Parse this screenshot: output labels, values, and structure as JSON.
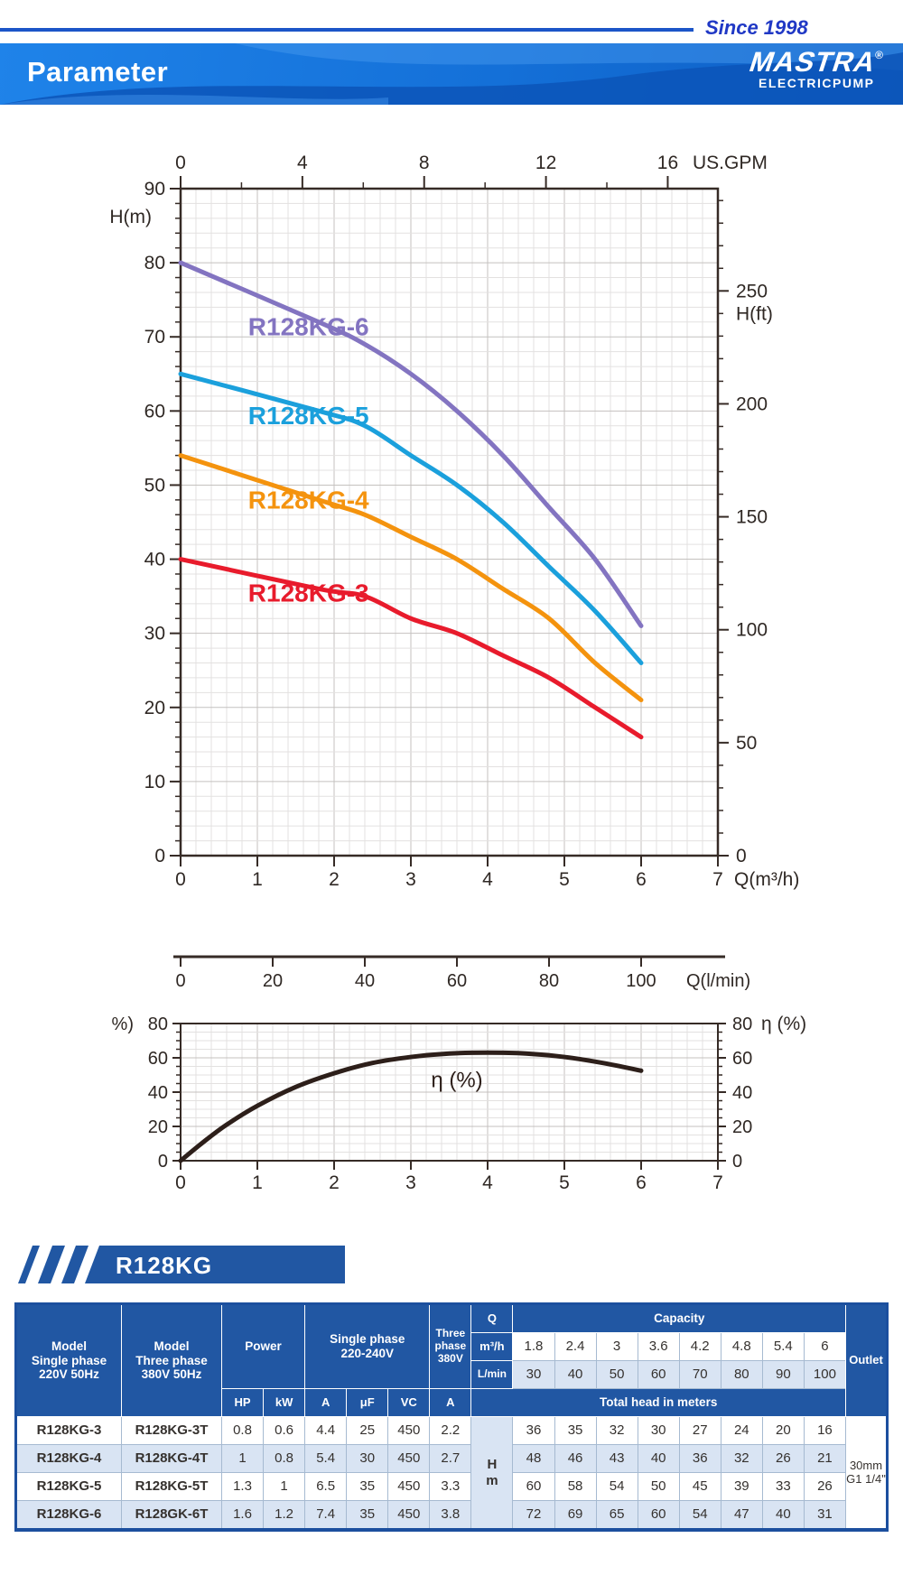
{
  "header": {
    "since_text": "Since 1998",
    "title": "Parameter",
    "brand": {
      "name": "MASTRA",
      "registered": "®",
      "sub": "ELECTRICPUMP"
    }
  },
  "chart_data": [
    {
      "type": "line",
      "name": "head-capacity-curves",
      "xlabel": "Q(m³/h)",
      "x2label": "US.GPM",
      "ylabel": "H(m)",
      "y2label": "H(ft)",
      "xlim": [
        0,
        7
      ],
      "ylim": [
        0,
        90
      ],
      "grid": true,
      "x_major": 1,
      "x_minor": 0.2,
      "y_major": 10,
      "y_minor": 2,
      "x_tick_labels": [
        "0",
        "1",
        "2",
        "3",
        "4",
        "5",
        "6",
        "7"
      ],
      "y_tick_labels": [
        "0",
        "10",
        "20",
        "30",
        "40",
        "50",
        "60",
        "70",
        "80",
        "90"
      ],
      "top_axis": {
        "label": "US.GPM",
        "gpm_per_m3h": 2.521,
        "major": 4,
        "minor": 2,
        "max_major": 16
      },
      "right_axis": {
        "label": "H(ft)",
        "ft_per_m": 3.2808,
        "major": 50,
        "minor": 10,
        "max_major": 250
      },
      "categories_m3h": [
        0,
        1.8,
        2.4,
        3,
        3.6,
        4.2,
        4.8,
        5.4,
        6
      ],
      "series": [
        {
          "name": "R128KG-6",
          "color": "#8374c1",
          "values": [
            80,
            72,
            69,
            65,
            60,
            54,
            47,
            40,
            31
          ],
          "label_xy": [
            0.88,
            70.2
          ]
        },
        {
          "name": "R128KG-5",
          "color": "#1ba0dc",
          "values": [
            65,
            60,
            58,
            54,
            50,
            45,
            39,
            33,
            26
          ],
          "label_xy": [
            0.88,
            58.2
          ]
        },
        {
          "name": "R128KG-4",
          "color": "#f4930e",
          "values": [
            54,
            48,
            46,
            43,
            40,
            36,
            32,
            26,
            21
          ],
          "label_xy": [
            0.88,
            46.8
          ]
        },
        {
          "name": "R128KG-3",
          "color": "#e81b2c",
          "values": [
            40,
            36,
            35,
            32,
            30,
            27,
            24,
            20,
            16
          ],
          "label_xy": [
            0.88,
            34.3
          ]
        }
      ]
    },
    {
      "type": "axis",
      "name": "lmin-scale",
      "label": "Q(l/min)",
      "ticks": [
        "0",
        "20",
        "40",
        "60",
        "80",
        "100"
      ],
      "tick_values": [
        0,
        20,
        40,
        60,
        80,
        100
      ],
      "lmin_per_m3h": 16.6667
    },
    {
      "type": "line",
      "name": "efficiency-curve",
      "label_left_clipped": "%)",
      "label_right": "η (%)",
      "annotation": "η (%)",
      "color": "#2d1f1a",
      "xlim": [
        0,
        7
      ],
      "ylim": [
        0,
        80
      ],
      "x_major": 1,
      "x_minor": 0.2,
      "y_major": 20,
      "y_minor": 5,
      "x_tick_labels": [
        "0",
        "1",
        "2",
        "3",
        "4",
        "5",
        "6",
        "7"
      ],
      "y_tick_labels": [
        "0",
        "20",
        "40",
        "60",
        "80"
      ],
      "x": [
        0,
        0.3,
        0.6,
        1,
        1.5,
        2,
        2.5,
        3,
        3.5,
        4,
        4.5,
        5,
        5.5,
        6
      ],
      "y": [
        0,
        11,
        21,
        32,
        43,
        51,
        57,
        60.5,
        62.5,
        63,
        62.5,
        60.5,
        57,
        52.5
      ],
      "annotation_xy": [
        3.6,
        43
      ]
    }
  ],
  "model_banner": {
    "text": "R128KG"
  },
  "table": {
    "col_model_single": [
      "Model",
      "Single phase",
      "220V 50Hz"
    ],
    "col_model_three": [
      "Model",
      "Three phase",
      "380V 50Hz"
    ],
    "col_power": "Power",
    "col_single_phase": [
      "Single phase",
      "220-240V"
    ],
    "col_three_phase": [
      "Three",
      "phase",
      "380V"
    ],
    "q_label": "Q",
    "capacity_label": "Capacity",
    "m3h_label": "m³/h",
    "lmin_label": "L/min",
    "m3h_values": [
      "1.8",
      "2.4",
      "3",
      "3.6",
      "4.2",
      "4.8",
      "5.4",
      "6"
    ],
    "lmin_values": [
      "30",
      "40",
      "50",
      "60",
      "70",
      "80",
      "90",
      "100"
    ],
    "outlet_label": "Outlet",
    "sub_headers": [
      "HP",
      "kW",
      "A",
      "μF",
      "VC",
      "A"
    ],
    "total_head_label": "Total head in meters",
    "hm_label": [
      "H",
      "m"
    ],
    "outlet_value": [
      "30mm",
      "G1 1/4\""
    ],
    "rows": [
      {
        "model_single": "R128KG-3",
        "model_three": "R128KG-3T",
        "hp": "0.8",
        "kw": "0.6",
        "a": "4.4",
        "uf": "25",
        "vc": "450",
        "a3": "2.2",
        "heads": [
          "36",
          "35",
          "32",
          "30",
          "27",
          "24",
          "20",
          "16"
        ]
      },
      {
        "model_single": "R128KG-4",
        "model_three": "R128KG-4T",
        "hp": "1",
        "kw": "0.8",
        "a": "5.4",
        "uf": "30",
        "vc": "450",
        "a3": "2.7",
        "heads": [
          "48",
          "46",
          "43",
          "40",
          "36",
          "32",
          "26",
          "21"
        ]
      },
      {
        "model_single": "R128KG-5",
        "model_three": "R128KG-5T",
        "hp": "1.3",
        "kw": "1",
        "a": "6.5",
        "uf": "35",
        "vc": "450",
        "a3": "3.3",
        "heads": [
          "60",
          "58",
          "54",
          "50",
          "45",
          "39",
          "33",
          "26"
        ]
      },
      {
        "model_single": "R128KG-6",
        "model_three": "R128GK-6T",
        "hp": "1.6",
        "kw": "1.2",
        "a": "7.4",
        "uf": "35",
        "vc": "450",
        "a3": "3.8",
        "heads": [
          "72",
          "69",
          "65",
          "60",
          "54",
          "47",
          "40",
          "31"
        ]
      }
    ]
  },
  "colors": {
    "axis": "#362b26",
    "tick_text": "#2f2824",
    "grid_minor": "#e3e1e0",
    "grid_major": "#c4c1bf",
    "table_header_blue": "#2157a3",
    "banner_blue_dark": "#0c55b8",
    "banner_blue_light": "#4a9bf0"
  }
}
